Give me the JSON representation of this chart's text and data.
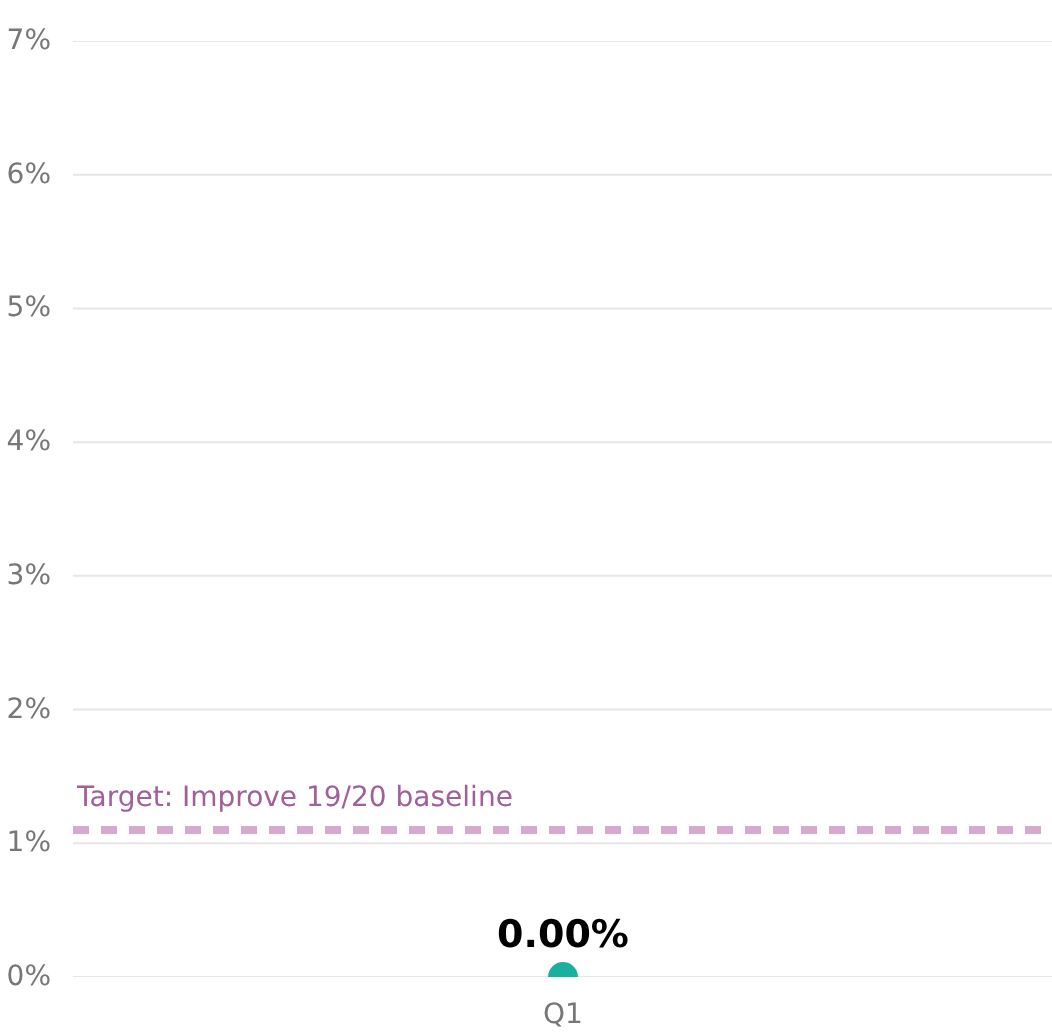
{
  "chart_data": {
    "type": "scatter",
    "categories": [
      "Q1"
    ],
    "series": [
      {
        "color": "#1ab0a0",
        "values": [
          0
        ]
      }
    ],
    "value_labels": [
      "0.00%"
    ],
    "ylim": [
      0,
      7
    ],
    "yticks": [
      {
        "value": 0,
        "label": "0%"
      },
      {
        "value": 1,
        "label": "1%"
      },
      {
        "value": 2,
        "label": "2%"
      },
      {
        "value": 3,
        "label": "3%"
      },
      {
        "value": 4,
        "label": "4%"
      },
      {
        "value": 5,
        "label": "5%"
      },
      {
        "value": 6,
        "label": "6%"
      },
      {
        "value": 7,
        "label": "7%"
      }
    ],
    "ref_lines": [
      {
        "axis": "y",
        "value": 1.1,
        "label": "Target: Improve 19/20 baseline",
        "color": "#d8a8d0",
        "line_style": "dashed"
      }
    ],
    "grid": "y",
    "marker": "circle"
  }
}
